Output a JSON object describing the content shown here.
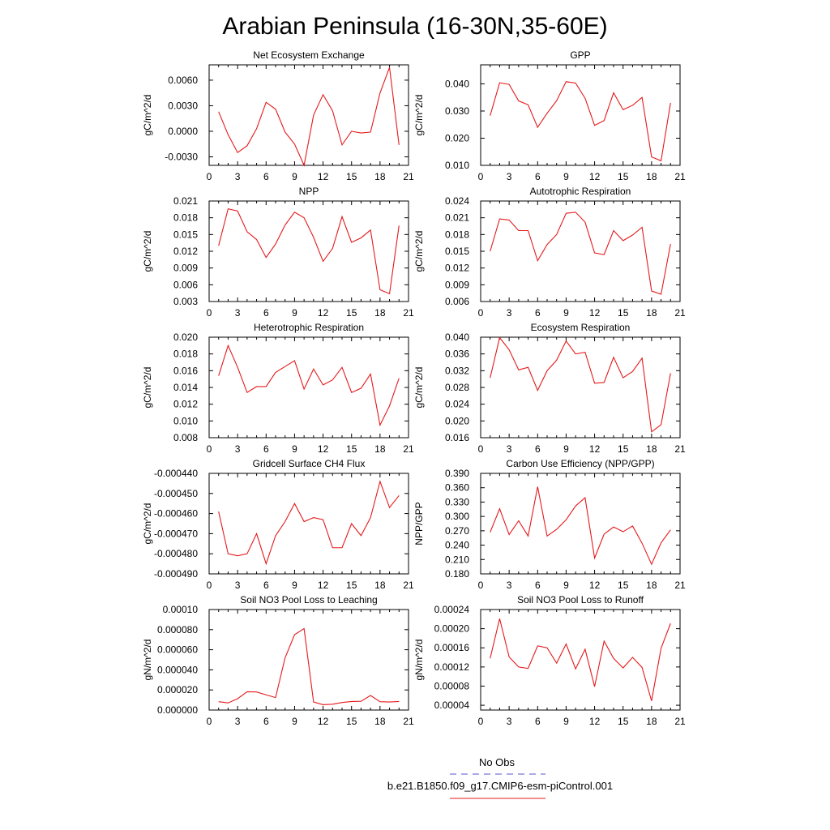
{
  "figure": {
    "title": "Arabian Peninsula (16-30N,35-60E)",
    "legend": {
      "entries": [
        {
          "label": "No Obs",
          "color": "#5555cc",
          "style": "dashed"
        },
        {
          "label": "b.e21.B1850.f09_g17.CMIP6-esm-piControl.001",
          "color": "#e41a1c",
          "style": "solid"
        }
      ]
    }
  },
  "chart_data": [
    {
      "type": "line",
      "title": "Net Ecosystem Exchange",
      "xlabel": "",
      "ylabel": "gC/m^2/d",
      "xlim": [
        0,
        21
      ],
      "ylim": [
        -0.004,
        0.0078
      ],
      "x_ticks": [
        "0",
        "3",
        "6",
        "9",
        "12",
        "15",
        "18",
        "21"
      ],
      "y_ticks": [
        -0.003,
        0.0,
        0.003,
        0.006
      ],
      "y_tick_labels": [
        "-0.0030",
        "0.0000",
        "0.0030",
        "0.0060"
      ],
      "series": [
        {
          "color": "#e41a1c",
          "x": [
            1,
            2,
            3,
            4,
            5,
            6,
            7,
            8,
            9,
            10,
            11,
            12,
            13,
            14,
            15,
            16,
            17,
            18,
            19,
            20
          ],
          "values": [
            0.0023,
            -0.0004,
            -0.0025,
            -0.0017,
            0.0003,
            0.0034,
            0.0026,
            -0.0001,
            -0.0015,
            -0.004,
            0.0019,
            0.0043,
            0.0024,
            -0.0016,
            0.0,
            -0.0002,
            -0.0001,
            0.0045,
            0.0075,
            -0.0016
          ]
        }
      ]
    },
    {
      "type": "line",
      "title": "GPP",
      "xlabel": "",
      "ylabel": "gC/m^2/d",
      "xlim": [
        0,
        21
      ],
      "ylim": [
        0.01,
        0.047
      ],
      "x_ticks": [
        "0",
        "3",
        "6",
        "9",
        "12",
        "15",
        "18",
        "21"
      ],
      "y_ticks": [
        0.01,
        0.02,
        0.03,
        0.04
      ],
      "y_tick_labels": [
        "0.010",
        "0.020",
        "0.030",
        "0.040"
      ],
      "series": [
        {
          "color": "#e41a1c",
          "x": [
            1,
            2,
            3,
            4,
            5,
            6,
            7,
            8,
            9,
            10,
            11,
            12,
            13,
            14,
            15,
            16,
            17,
            18,
            19,
            20
          ],
          "values": [
            0.0283,
            0.0404,
            0.0398,
            0.0337,
            0.0323,
            0.024,
            0.0292,
            0.0338,
            0.0408,
            0.0403,
            0.0347,
            0.0247,
            0.0265,
            0.0367,
            0.0305,
            0.0321,
            0.035,
            0.0131,
            0.0117,
            0.033
          ]
        }
      ]
    },
    {
      "type": "line",
      "title": "NPP",
      "xlabel": "",
      "ylabel": "gC/m^2/d",
      "xlim": [
        0,
        21
      ],
      "ylim": [
        0.003,
        0.021
      ],
      "x_ticks": [
        "0",
        "3",
        "6",
        "9",
        "12",
        "15",
        "18",
        "21"
      ],
      "y_ticks": [
        0.003,
        0.006,
        0.009,
        0.012,
        0.015,
        0.018,
        0.021
      ],
      "y_tick_labels": [
        "0.003",
        "0.006",
        "0.009",
        "0.012",
        "0.015",
        "0.018",
        "0.021"
      ],
      "series": [
        {
          "color": "#e41a1c",
          "x": [
            1,
            2,
            3,
            4,
            5,
            6,
            7,
            8,
            9,
            10,
            11,
            12,
            13,
            14,
            15,
            16,
            17,
            18,
            19,
            20
          ],
          "values": [
            0.013,
            0.0196,
            0.0192,
            0.0155,
            0.0141,
            0.0109,
            0.0133,
            0.0167,
            0.019,
            0.018,
            0.0145,
            0.0102,
            0.0125,
            0.0182,
            0.0136,
            0.0144,
            0.0158,
            0.0051,
            0.0044,
            0.0166
          ]
        }
      ]
    },
    {
      "type": "line",
      "title": "Autotrophic Respiration",
      "xlabel": "",
      "ylabel": "gC/m^2/d",
      "xlim": [
        0,
        21
      ],
      "ylim": [
        0.006,
        0.024
      ],
      "x_ticks": [
        "0",
        "3",
        "6",
        "9",
        "12",
        "15",
        "18",
        "21"
      ],
      "y_ticks": [
        0.006,
        0.009,
        0.012,
        0.015,
        0.018,
        0.021,
        0.024
      ],
      "y_tick_labels": [
        "0.006",
        "0.009",
        "0.012",
        "0.015",
        "0.018",
        "0.021",
        "0.024"
      ],
      "series": [
        {
          "color": "#e41a1c",
          "x": [
            1,
            2,
            3,
            4,
            5,
            6,
            7,
            8,
            9,
            10,
            11,
            12,
            13,
            14,
            15,
            16,
            17,
            18,
            19,
            20
          ],
          "values": [
            0.015,
            0.0208,
            0.0206,
            0.0187,
            0.0187,
            0.0133,
            0.0162,
            0.018,
            0.0218,
            0.022,
            0.0202,
            0.0147,
            0.0144,
            0.0187,
            0.0169,
            0.0179,
            0.0193,
            0.0079,
            0.0073,
            0.0163
          ]
        }
      ]
    },
    {
      "type": "line",
      "title": "Heterotrophic Respiration",
      "xlabel": "",
      "ylabel": "gC/m^2/d",
      "xlim": [
        0,
        21
      ],
      "ylim": [
        0.008,
        0.02
      ],
      "x_ticks": [
        "0",
        "3",
        "6",
        "9",
        "12",
        "15",
        "18",
        "21"
      ],
      "y_ticks": [
        0.008,
        0.01,
        0.012,
        0.014,
        0.016,
        0.018,
        0.02
      ],
      "y_tick_labels": [
        "0.008",
        "0.010",
        "0.012",
        "0.014",
        "0.016",
        "0.018",
        "0.020"
      ],
      "series": [
        {
          "color": "#e41a1c",
          "x": [
            1,
            2,
            3,
            4,
            5,
            6,
            7,
            8,
            9,
            10,
            11,
            12,
            13,
            14,
            15,
            16,
            17,
            18,
            19,
            20
          ],
          "values": [
            0.0154,
            0.019,
            0.0164,
            0.0134,
            0.0141,
            0.0141,
            0.0158,
            0.0165,
            0.0172,
            0.0138,
            0.0162,
            0.0143,
            0.0149,
            0.0164,
            0.0134,
            0.0139,
            0.0156,
            0.0095,
            0.0118,
            0.0151
          ]
        }
      ]
    },
    {
      "type": "line",
      "title": "Ecosystem Respiration",
      "xlabel": "",
      "ylabel": "gC/m^2/d",
      "xlim": [
        0,
        21
      ],
      "ylim": [
        0.016,
        0.04
      ],
      "x_ticks": [
        "0",
        "3",
        "6",
        "9",
        "12",
        "15",
        "18",
        "21"
      ],
      "y_ticks": [
        0.016,
        0.02,
        0.024,
        0.028,
        0.032,
        0.036,
        0.04
      ],
      "y_tick_labels": [
        "0.016",
        "0.020",
        "0.024",
        "0.028",
        "0.032",
        "0.036",
        "0.040"
      ],
      "series": [
        {
          "color": "#e41a1c",
          "x": [
            1,
            2,
            3,
            4,
            5,
            6,
            7,
            8,
            9,
            10,
            11,
            12,
            13,
            14,
            15,
            16,
            17,
            18,
            19,
            20
          ],
          "values": [
            0.0303,
            0.0399,
            0.037,
            0.0322,
            0.0328,
            0.0273,
            0.032,
            0.0345,
            0.0391,
            0.036,
            0.0364,
            0.029,
            0.0292,
            0.0352,
            0.0303,
            0.0318,
            0.035,
            0.0174,
            0.0191,
            0.0314
          ]
        }
      ]
    },
    {
      "type": "line",
      "title": "Gridcell Surface CH4 Flux",
      "xlabel": "",
      "ylabel": "gC/m^2/d",
      "xlim": [
        0,
        21
      ],
      "ylim": [
        -0.00049,
        -0.00044
      ],
      "x_ticks": [
        "0",
        "3",
        "6",
        "9",
        "12",
        "15",
        "18",
        "21"
      ],
      "y_ticks": [
        -0.00049,
        -0.00048,
        -0.00047,
        -0.00046,
        -0.00045,
        -0.00044
      ],
      "y_tick_labels": [
        "-0.000490",
        "-0.000480",
        "-0.000470",
        "-0.000460",
        "-0.000450",
        "-0.000440"
      ],
      "series": [
        {
          "color": "#e41a1c",
          "x": [
            1,
            2,
            3,
            4,
            5,
            6,
            7,
            8,
            9,
            10,
            11,
            12,
            13,
            14,
            15,
            16,
            17,
            18,
            19,
            20
          ],
          "values": [
            -0.000459,
            -0.00048,
            -0.000481,
            -0.00048,
            -0.00047,
            -0.000485,
            -0.000471,
            -0.000464,
            -0.000455,
            -0.000464,
            -0.000462,
            -0.000463,
            -0.000477,
            -0.000477,
            -0.000465,
            -0.000471,
            -0.000462,
            -0.000444,
            -0.000457,
            -0.000451
          ]
        }
      ]
    },
    {
      "type": "line",
      "title": "Carbon Use Efficiency (NPP/GPP)",
      "xlabel": "",
      "ylabel": "NPP/GPP",
      "xlim": [
        0,
        21
      ],
      "ylim": [
        0.18,
        0.39
      ],
      "x_ticks": [
        "0",
        "3",
        "6",
        "9",
        "12",
        "15",
        "18",
        "21"
      ],
      "y_ticks": [
        0.18,
        0.21,
        0.24,
        0.27,
        0.3,
        0.33,
        0.36,
        0.39
      ],
      "y_tick_labels": [
        "0.180",
        "0.210",
        "0.240",
        "0.270",
        "0.300",
        "0.330",
        "0.360",
        "0.390"
      ],
      "series": [
        {
          "color": "#e41a1c",
          "x": [
            1,
            2,
            3,
            4,
            5,
            6,
            7,
            8,
            9,
            10,
            11,
            12,
            13,
            14,
            15,
            16,
            17,
            18,
            19,
            20
          ],
          "values": [
            0.267,
            0.316,
            0.262,
            0.291,
            0.259,
            0.362,
            0.259,
            0.273,
            0.293,
            0.322,
            0.339,
            0.213,
            0.263,
            0.278,
            0.268,
            0.28,
            0.244,
            0.2,
            0.245,
            0.272
          ]
        }
      ]
    },
    {
      "type": "line",
      "title": "Soil NO3 Pool Loss to Leaching",
      "xlabel": "",
      "ylabel": "gN/m^2/d",
      "xlim": [
        0,
        21
      ],
      "ylim": [
        0.0,
        0.0001
      ],
      "x_ticks": [
        "0",
        "3",
        "6",
        "9",
        "12",
        "15",
        "18",
        "21"
      ],
      "y_ticks": [
        0.0,
        2e-05,
        4e-05,
        6e-05,
        8e-05,
        0.0001
      ],
      "y_tick_labels": [
        "0.000000",
        "0.000020",
        "0.000040",
        "0.000060",
        "0.000080",
        "0.00010"
      ],
      "series": [
        {
          "color": "#e41a1c",
          "x": [
            1,
            2,
            3,
            4,
            5,
            6,
            7,
            8,
            9,
            10,
            11,
            12,
            13,
            14,
            15,
            16,
            17,
            18,
            19,
            20
          ],
          "values": [
            8.3e-06,
            7.1e-06,
            1.13e-05,
            1.82e-05,
            1.8e-05,
            1.51e-05,
            1.24e-05,
            5.2e-05,
            7.5e-05,
            8.1e-05,
            8e-06,
            5.3e-06,
            5.8e-06,
            7.5e-06,
            8.5e-06,
            8.7e-06,
            1.45e-05,
            8.3e-06,
            8e-06,
            8.5e-06
          ]
        }
      ]
    },
    {
      "type": "line",
      "title": "Soil NO3 Pool Loss to Runoff",
      "xlabel": "",
      "ylabel": "gN/m^2/d",
      "xlim": [
        0,
        21
      ],
      "ylim": [
        3e-05,
        0.00024
      ],
      "x_ticks": [
        "0",
        "3",
        "6",
        "9",
        "12",
        "15",
        "18",
        "21"
      ],
      "y_ticks": [
        4e-05,
        8e-05,
        0.00012,
        0.00016,
        0.0002,
        0.00024
      ],
      "y_tick_labels": [
        "0.00004",
        "0.00008",
        "0.00012",
        "0.00016",
        "0.00020",
        "0.00024"
      ],
      "series": [
        {
          "color": "#e41a1c",
          "x": [
            1,
            2,
            3,
            4,
            5,
            6,
            7,
            8,
            9,
            10,
            11,
            12,
            13,
            14,
            15,
            16,
            17,
            18,
            19,
            20
          ],
          "values": [
            0.000138,
            0.000221,
            0.000141,
            0.00012,
            0.000117,
            0.000164,
            0.00016,
            0.000128,
            0.000168,
            0.000116,
            0.000157,
            7.9e-05,
            0.000174,
            0.000138,
            0.000118,
            0.00014,
            0.000119,
            4.9e-05,
            0.000159,
            0.000211
          ]
        }
      ]
    }
  ]
}
